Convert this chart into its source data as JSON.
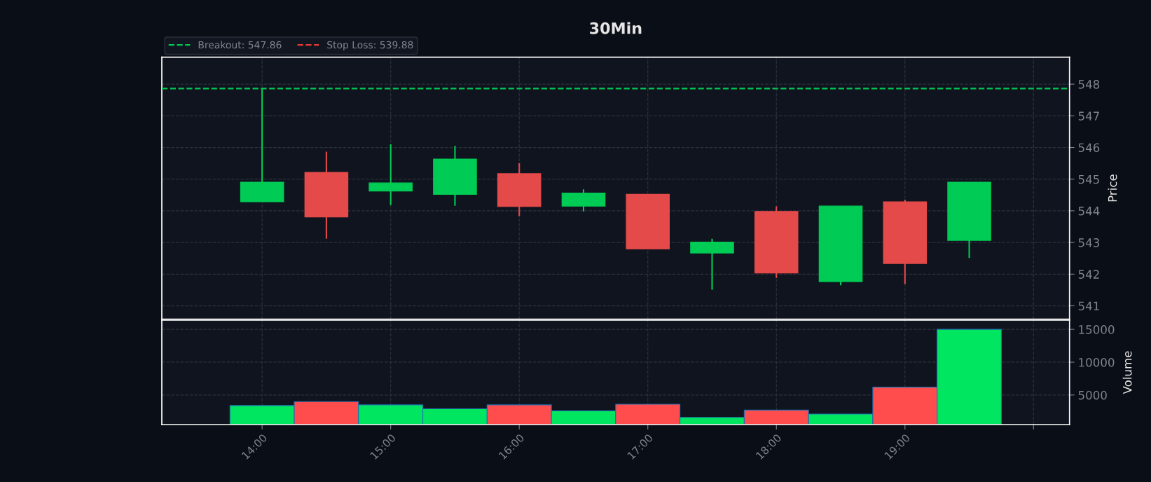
{
  "chart_data": [
    {
      "type": "candlestick",
      "title": "30Min",
      "ylabel": "Price",
      "x": [
        14,
        14.5,
        15,
        15.5,
        16,
        16.5,
        17,
        17.5,
        18,
        18.5,
        19,
        19.5
      ],
      "ohlc": [
        [
          544.29,
          547.86,
          544.29,
          544.9
        ],
        [
          545.21,
          545.87,
          543.12,
          543.81
        ],
        [
          544.63,
          546.1,
          544.18,
          544.88
        ],
        [
          544.52,
          546.05,
          544.16,
          545.63
        ],
        [
          545.17,
          545.5,
          543.83,
          544.14
        ],
        [
          544.15,
          544.68,
          543.98,
          544.56
        ],
        [
          544.52,
          544.52,
          542.8,
          542.8
        ],
        [
          542.67,
          543.12,
          541.51,
          543.01
        ],
        [
          543.98,
          544.14,
          541.88,
          542.04
        ],
        [
          541.77,
          544.15,
          541.65,
          544.15
        ],
        [
          544.28,
          544.35,
          541.69,
          542.34
        ],
        [
          543.07,
          544.9,
          542.51,
          544.9
        ]
      ],
      "colors": [
        "#00cc55",
        "#e54a4a",
        "#00cc55",
        "#00cc55",
        "#e54a4a",
        "#00cc55",
        "#e54a4a",
        "#00cc55",
        "#e54a4a",
        "#00cc55",
        "#e54a4a",
        "#00cc55"
      ],
      "xlim": [
        13.22,
        20.28
      ],
      "xticks": [
        {
          "value": 14,
          "label": null
        },
        {
          "value": 15,
          "label": null
        },
        {
          "value": 16,
          "label": null
        },
        {
          "value": 17,
          "label": null
        },
        {
          "value": 18,
          "label": null
        },
        {
          "value": 19,
          "label": null
        },
        {
          "value": 20,
          "label": null
        }
      ],
      "ylim": [
        540.58,
        548.85
      ],
      "yticks": [
        541,
        542,
        543,
        544,
        545,
        546,
        547,
        548
      ],
      "ref_lines": [
        {
          "axis": "y",
          "value": 547.86,
          "label": "Breakout: 547.86",
          "color": "#00c853",
          "line_style": "dashed"
        }
      ],
      "annotations": [
        "Stop Loss: 539.88"
      ],
      "legend": "top left",
      "grid": true,
      "tick_labels": "y"
    },
    {
      "type": "bar",
      "ylabel": "Volume",
      "x": [
        14,
        14.5,
        15,
        15.5,
        16,
        16.5,
        17,
        17.5,
        18,
        18.5,
        19,
        19.5
      ],
      "values": [
        3400,
        4000,
        3500,
        2900,
        3500,
        2600,
        3600,
        1600,
        2700,
        2100,
        6200,
        15000
      ],
      "colors": [
        "#00e660",
        "#ff4d4d",
        "#00e660",
        "#00e660",
        "#ff4d4d",
        "#00e660",
        "#ff4d4d",
        "#00e660",
        "#ff4d4d",
        "#00e660",
        "#ff4d4d",
        "#00e660"
      ],
      "xlim": [
        13.22,
        20.28
      ],
      "xticks": [
        {
          "value": 14,
          "label": "14:00"
        },
        {
          "value": 15,
          "label": "15:00"
        },
        {
          "value": 16,
          "label": "16:00"
        },
        {
          "value": 17,
          "label": "17:00"
        },
        {
          "value": 18,
          "label": "18:00"
        },
        {
          "value": 19,
          "label": "19:00"
        },
        {
          "value": 20,
          "label": null
        }
      ],
      "ylim": [
        500,
        16400
      ],
      "yticks": [
        5000,
        10000,
        15000
      ],
      "grid": true
    }
  ]
}
